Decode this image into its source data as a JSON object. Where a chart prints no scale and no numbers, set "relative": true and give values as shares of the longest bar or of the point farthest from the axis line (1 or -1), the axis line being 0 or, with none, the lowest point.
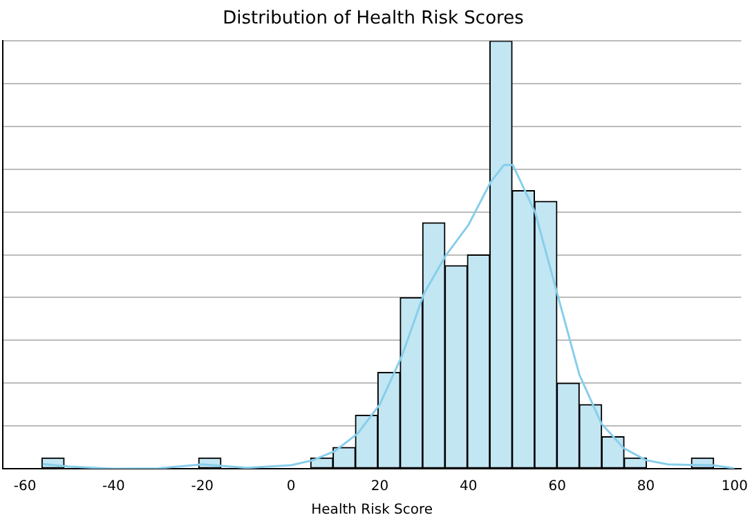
{
  "chart_data": {
    "type": "histogram",
    "title": "Distribution of Health Risk Scores",
    "xlabel": "Health Risk Score",
    "relative": true,
    "bins": [
      -56.2,
      -51.15,
      -46.1,
      -41.05,
      -36,
      -30.95,
      -25.9,
      -20.85,
      -15.8,
      -10.75,
      -5.7,
      -0.65,
      4.4,
      9.45,
      14.5,
      19.55,
      24.6,
      29.65,
      34.7,
      39.75,
      44.8,
      49.85,
      54.9,
      59.95,
      65,
      70.05,
      75.1,
      80.15,
      85.2,
      90.25,
      95.3
    ],
    "values": [
      0.025,
      0,
      0,
      0,
      0,
      0,
      0,
      0.025,
      0,
      0,
      0,
      0,
      0.025,
      0.05,
      0.125,
      0.225,
      0.4,
      0.575,
      0.475,
      0.5,
      1,
      0.65,
      0.625,
      0.2,
      0.15,
      0.075,
      0.025,
      0,
      0,
      0.025
    ],
    "color": "#c3e6f3",
    "series": [
      {
        "type": "line",
        "color": "#87ceeb",
        "x": [
          -56,
          -50,
          -40,
          -30,
          -20,
          -10,
          0,
          5,
          10,
          15,
          20,
          25,
          30,
          35,
          40,
          45,
          48,
          50,
          55,
          60,
          65,
          70,
          75,
          80,
          85,
          90,
          95,
          100
        ],
        "values": [
          0.011,
          0.005,
          0,
          0.001,
          0.01,
          0.002,
          0.008,
          0.02,
          0.042,
          0.082,
          0.15,
          0.264,
          0.41,
          0.5,
          0.57,
          0.67,
          0.71,
          0.71,
          0.6,
          0.41,
          0.22,
          0.105,
          0.048,
          0.02,
          0.01,
          0.009,
          0.008,
          0.001
        ]
      }
    ],
    "xlim": [
      -65,
      101.5
    ],
    "xticks": [
      -60,
      -40,
      -20,
      0,
      20,
      40,
      60,
      80,
      100
    ],
    "grid": "y",
    "legend": false
  }
}
